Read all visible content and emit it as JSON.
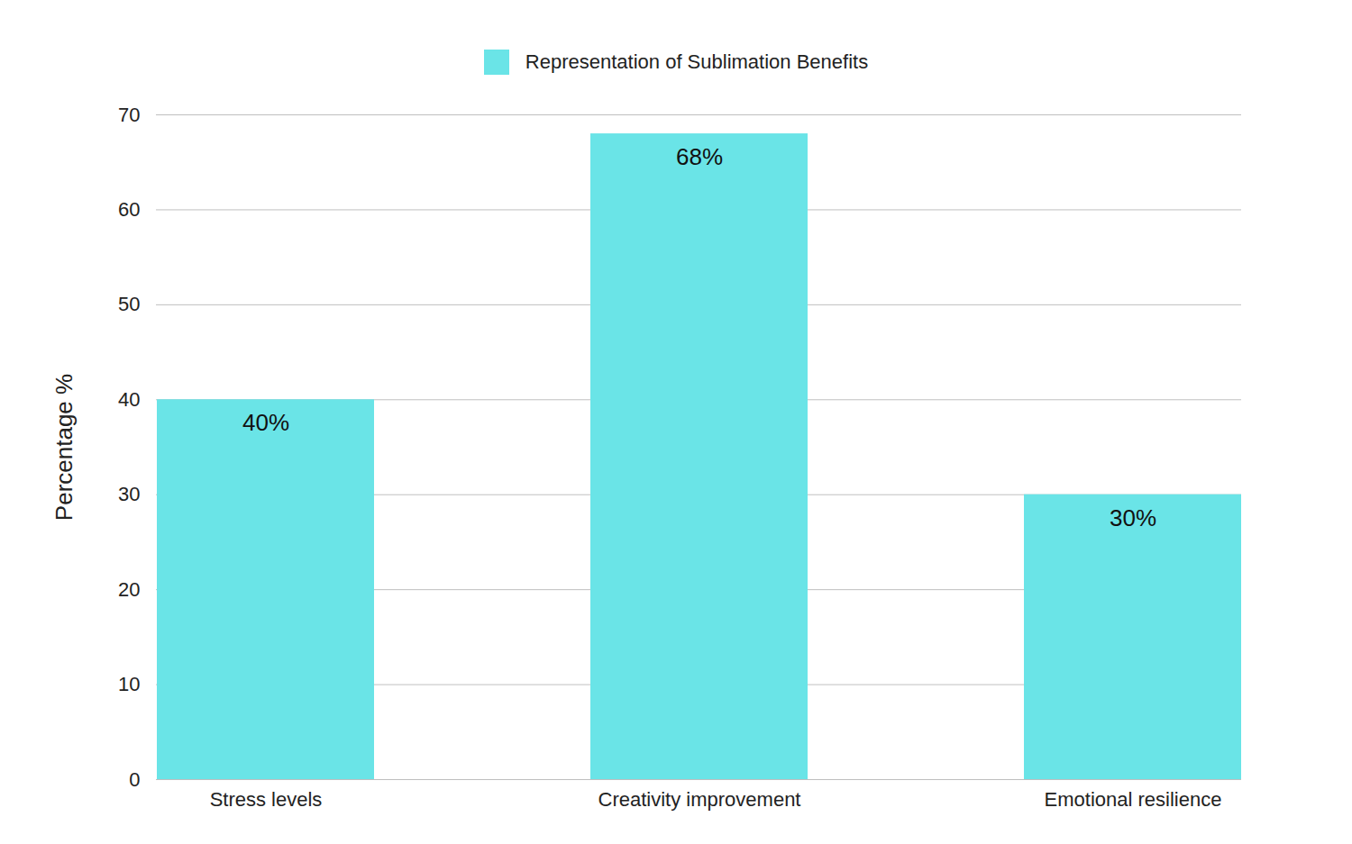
{
  "chart_data": {
    "type": "bar",
    "categories": [
      "Stress levels",
      "Creativity improvement",
      "Emotional resilience"
    ],
    "series": [
      {
        "name": "Representation of Sublimation Benefits",
        "color": "#6ae4e7",
        "values": [
          40,
          68,
          30
        ],
        "value_labels": [
          "40%",
          "68%",
          "30%"
        ]
      }
    ],
    "y_label": "Percentage %",
    "ylim": [
      0,
      70
    ],
    "yticks": [
      0,
      10,
      20,
      30,
      40,
      50,
      60,
      70
    ],
    "grid": true,
    "legend": "top",
    "data_labels": true
  }
}
